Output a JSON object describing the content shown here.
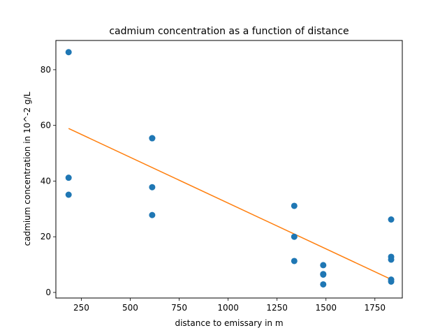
{
  "chart_data": {
    "type": "scatter",
    "title": "cadmium concentration as a function of distance",
    "xlabel": "distance to emissary in m",
    "ylabel": "cadmium concentration in 10^-2 g/L",
    "xlim": [
      120,
      1890
    ],
    "ylim": [
      -2,
      90.5
    ],
    "xticks": [
      250,
      500,
      750,
      1000,
      1250,
      1500,
      1750
    ],
    "yticks": [
      0,
      20,
      40,
      60,
      80
    ],
    "grid": false,
    "colors": {
      "points": "#1f77b4",
      "fit_line": "#ff7f0e"
    },
    "points": [
      {
        "x": 185,
        "y": 86.3
      },
      {
        "x": 185,
        "y": 41.2
      },
      {
        "x": 185,
        "y": 35.1
      },
      {
        "x": 612,
        "y": 55.4
      },
      {
        "x": 612,
        "y": 55.4
      },
      {
        "x": 612,
        "y": 37.8
      },
      {
        "x": 612,
        "y": 27.8
      },
      {
        "x": 1338,
        "y": 31.1
      },
      {
        "x": 1338,
        "y": 20.0
      },
      {
        "x": 1338,
        "y": 11.3
      },
      {
        "x": 1486,
        "y": 9.8
      },
      {
        "x": 1486,
        "y": 6.6
      },
      {
        "x": 1486,
        "y": 6.4
      },
      {
        "x": 1486,
        "y": 2.9
      },
      {
        "x": 1833,
        "y": 26.2
      },
      {
        "x": 1833,
        "y": 12.8
      },
      {
        "x": 1833,
        "y": 11.8
      },
      {
        "x": 1833,
        "y": 4.6
      },
      {
        "x": 1833,
        "y": 3.9
      }
    ],
    "fit_line": {
      "x": [
        185,
        1833
      ],
      "y": [
        58.9,
        4.7
      ]
    }
  }
}
